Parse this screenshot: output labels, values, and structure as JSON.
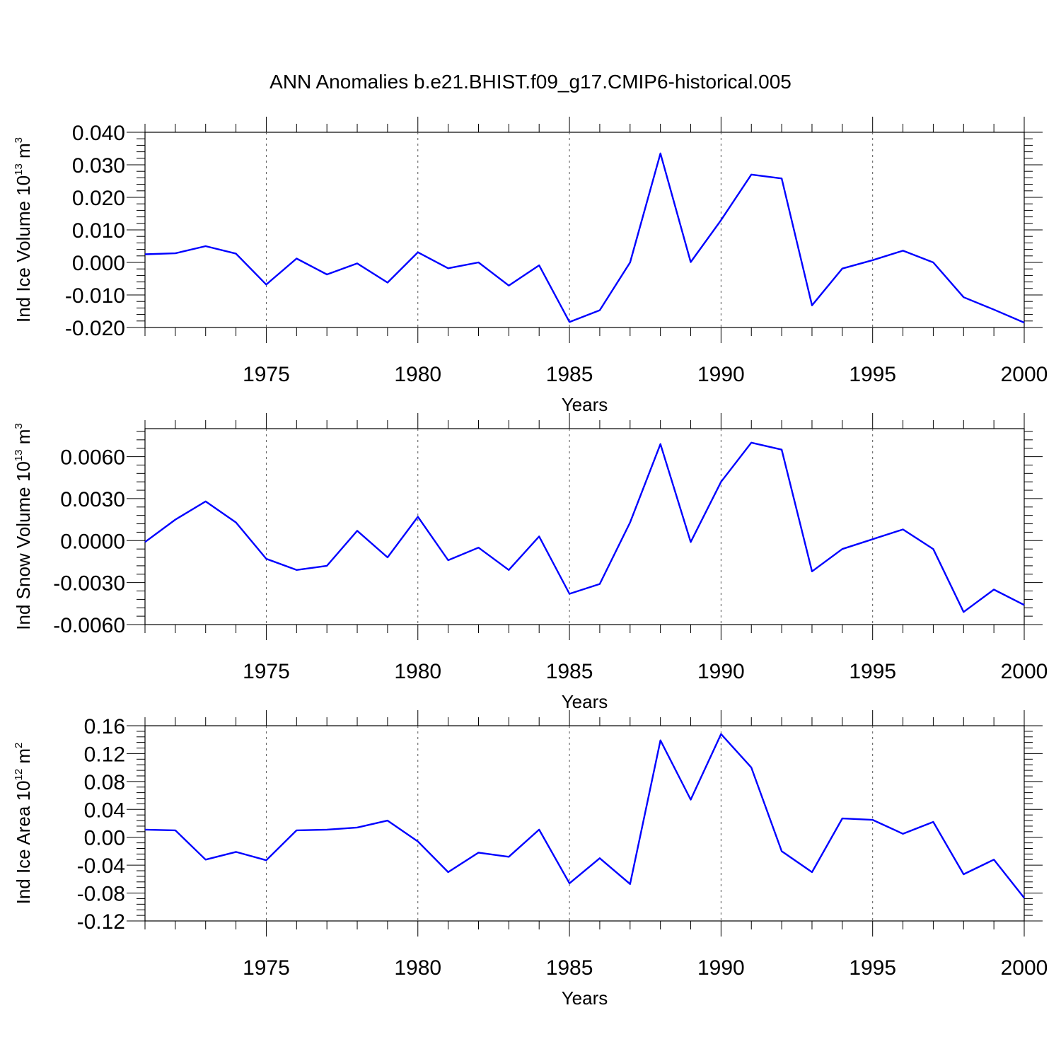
{
  "figure": {
    "title": "ANN Anomalies b.e21.BHIST.f09_g17.CMIP6-historical.005",
    "line_color": "#0000ff"
  },
  "chart_data": [
    {
      "type": "line",
      "ylabel_main": "Ind Ice Volume 10",
      "ylabel_exp": "13",
      "ylabel_unit": " m",
      "ylabel_unit_exp": "3",
      "xlabel": "Years",
      "xlim": [
        1971,
        2000
      ],
      "ylim": [
        -0.02,
        0.04
      ],
      "yticks": [
        -0.02,
        -0.01,
        0.0,
        0.01,
        0.02,
        0.03,
        0.04
      ],
      "yticklabels": [
        "-0.020",
        "-0.010",
        "0.000",
        "0.010",
        "0.020",
        "0.030",
        "0.040"
      ],
      "xticks": [
        1975,
        1980,
        1985,
        1990,
        1995,
        2000
      ],
      "xticklabels": [
        "1975",
        "1980",
        "1985",
        "1990",
        "1995",
        "2000"
      ],
      "grid": "dashed verticals at major year ticks",
      "x": [
        1971,
        1972,
        1973,
        1974,
        1975,
        1976,
        1977,
        1978,
        1979,
        1980,
        1981,
        1982,
        1983,
        1984,
        1985,
        1986,
        1987,
        1988,
        1989,
        1990,
        1991,
        1992,
        1993,
        1994,
        1995,
        1996,
        1997,
        1998,
        1999,
        2000
      ],
      "y": [
        0.0025,
        0.0028,
        0.005,
        0.0027,
        -0.0068,
        0.0012,
        -0.0037,
        -0.0003,
        -0.0062,
        0.0031,
        -0.0018,
        0.0,
        -0.0071,
        -0.0009,
        -0.0183,
        -0.0147,
        0.0,
        0.0335,
        0.0001,
        0.013,
        0.027,
        0.0258,
        -0.0132,
        -0.0019,
        0.0007,
        0.0036,
        0.0,
        -0.0107,
        -0.0145,
        -0.0185
      ]
    },
    {
      "type": "line",
      "ylabel_main": "Ind Snow Volume 10",
      "ylabel_exp": "13",
      "ylabel_unit": " m",
      "ylabel_unit_exp": "3",
      "xlabel": "Years",
      "xlim": [
        1971,
        2000
      ],
      "ylim": [
        -0.006,
        0.008
      ],
      "yticks": [
        -0.006,
        -0.003,
        0.0,
        0.003,
        0.006
      ],
      "yticklabels": [
        "-0.0060",
        "-0.0030",
        "0.0000",
        "0.0030",
        "0.0060"
      ],
      "xticks": [
        1975,
        1980,
        1985,
        1990,
        1995,
        2000
      ],
      "xticklabels": [
        "1975",
        "1980",
        "1985",
        "1990",
        "1995",
        "2000"
      ],
      "grid": "dashed verticals at major year ticks",
      "x": [
        1971,
        1972,
        1973,
        1974,
        1975,
        1976,
        1977,
        1978,
        1979,
        1980,
        1981,
        1982,
        1983,
        1984,
        1985,
        1986,
        1987,
        1988,
        1989,
        1990,
        1991,
        1992,
        1993,
        1994,
        1995,
        1996,
        1997,
        1998,
        1999,
        2000
      ],
      "y": [
        -0.0001,
        0.0015,
        0.0028,
        0.0013,
        -0.0013,
        -0.0021,
        -0.0018,
        0.0007,
        -0.0012,
        0.0017,
        -0.0014,
        -0.0005,
        -0.0021,
        0.0003,
        -0.0038,
        -0.0031,
        0.0013,
        0.0069,
        -0.0001,
        0.0042,
        0.007,
        0.0065,
        -0.0022,
        -0.0006,
        0.0001,
        0.0008,
        -0.0006,
        -0.0051,
        -0.0035,
        -0.0046
      ]
    },
    {
      "type": "line",
      "ylabel_main": "Ind Ice Area 10",
      "ylabel_exp": "12",
      "ylabel_unit": " m",
      "ylabel_unit_exp": "2",
      "xlabel": "Years",
      "xlim": [
        1971,
        2000
      ],
      "ylim": [
        -0.12,
        0.16
      ],
      "yticks": [
        -0.12,
        -0.08,
        -0.04,
        0.0,
        0.04,
        0.08,
        0.12,
        0.16
      ],
      "yticklabels": [
        "-0.12",
        "-0.08",
        "-0.04",
        "0.00",
        "0.04",
        "0.08",
        "0.12",
        "0.16"
      ],
      "xticks": [
        1975,
        1980,
        1985,
        1990,
        1995,
        2000
      ],
      "xticklabels": [
        "1975",
        "1980",
        "1985",
        "1990",
        "1995",
        "2000"
      ],
      "grid": "dashed verticals at major year ticks",
      "x": [
        1971,
        1972,
        1973,
        1974,
        1975,
        1976,
        1977,
        1978,
        1979,
        1980,
        1981,
        1982,
        1983,
        1984,
        1985,
        1986,
        1987,
        1988,
        1989,
        1990,
        1991,
        1992,
        1993,
        1994,
        1995,
        1996,
        1997,
        1998,
        1999,
        2000
      ],
      "y": [
        0.011,
        0.01,
        -0.032,
        -0.021,
        -0.033,
        0.01,
        0.011,
        0.014,
        0.024,
        -0.006,
        -0.05,
        -0.022,
        -0.028,
        0.011,
        -0.066,
        -0.03,
        -0.067,
        0.139,
        0.054,
        0.148,
        0.1,
        -0.02,
        -0.05,
        0.027,
        0.025,
        0.005,
        0.022,
        -0.053,
        -0.032,
        -0.087
      ]
    }
  ]
}
